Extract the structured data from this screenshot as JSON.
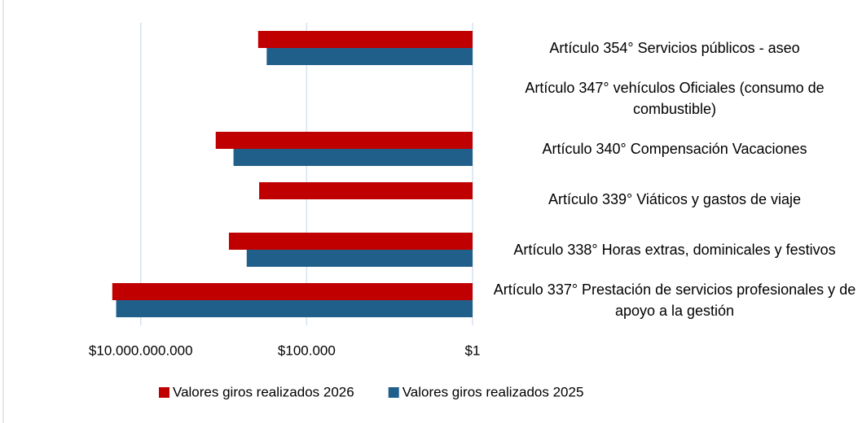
{
  "chart_data": {
    "type": "bar",
    "orientation": "horizontal",
    "xscale": "log",
    "x_inverted": true,
    "categories": [
      "Artículo 354° Servicios públicos - aseo",
      "Artículo 347° vehículos Oficiales (consumo de combustible)",
      "Artículo 340° Compensación Vacaciones",
      "Artículo 339° Viáticos y gastos de viaje",
      "Artículo 338° Horas extras, dominicales y festivos",
      "Artículo 337° Prestación de servicios profesionales y de apoyo a la gestión"
    ],
    "series": [
      {
        "name": "Valores giros realizados 2026",
        "color": "#c00000",
        "values": [
          2900000,
          null,
          55000000,
          2700000,
          22000000,
          72000000000
        ]
      },
      {
        "name": "Valores giros realizados 2025",
        "color": "#215f8b",
        "values": [
          1600000,
          null,
          16000000,
          null,
          6400000,
          55000000000
        ]
      }
    ],
    "xlim": [
      1,
      100000000000
    ],
    "xticks": [
      {
        "value": 10000000000,
        "label": "$10.000.000.000"
      },
      {
        "value": 100000,
        "label": "$100.000"
      },
      {
        "value": 1,
        "label": "$1"
      }
    ],
    "grid": true,
    "legend": "bottom"
  }
}
